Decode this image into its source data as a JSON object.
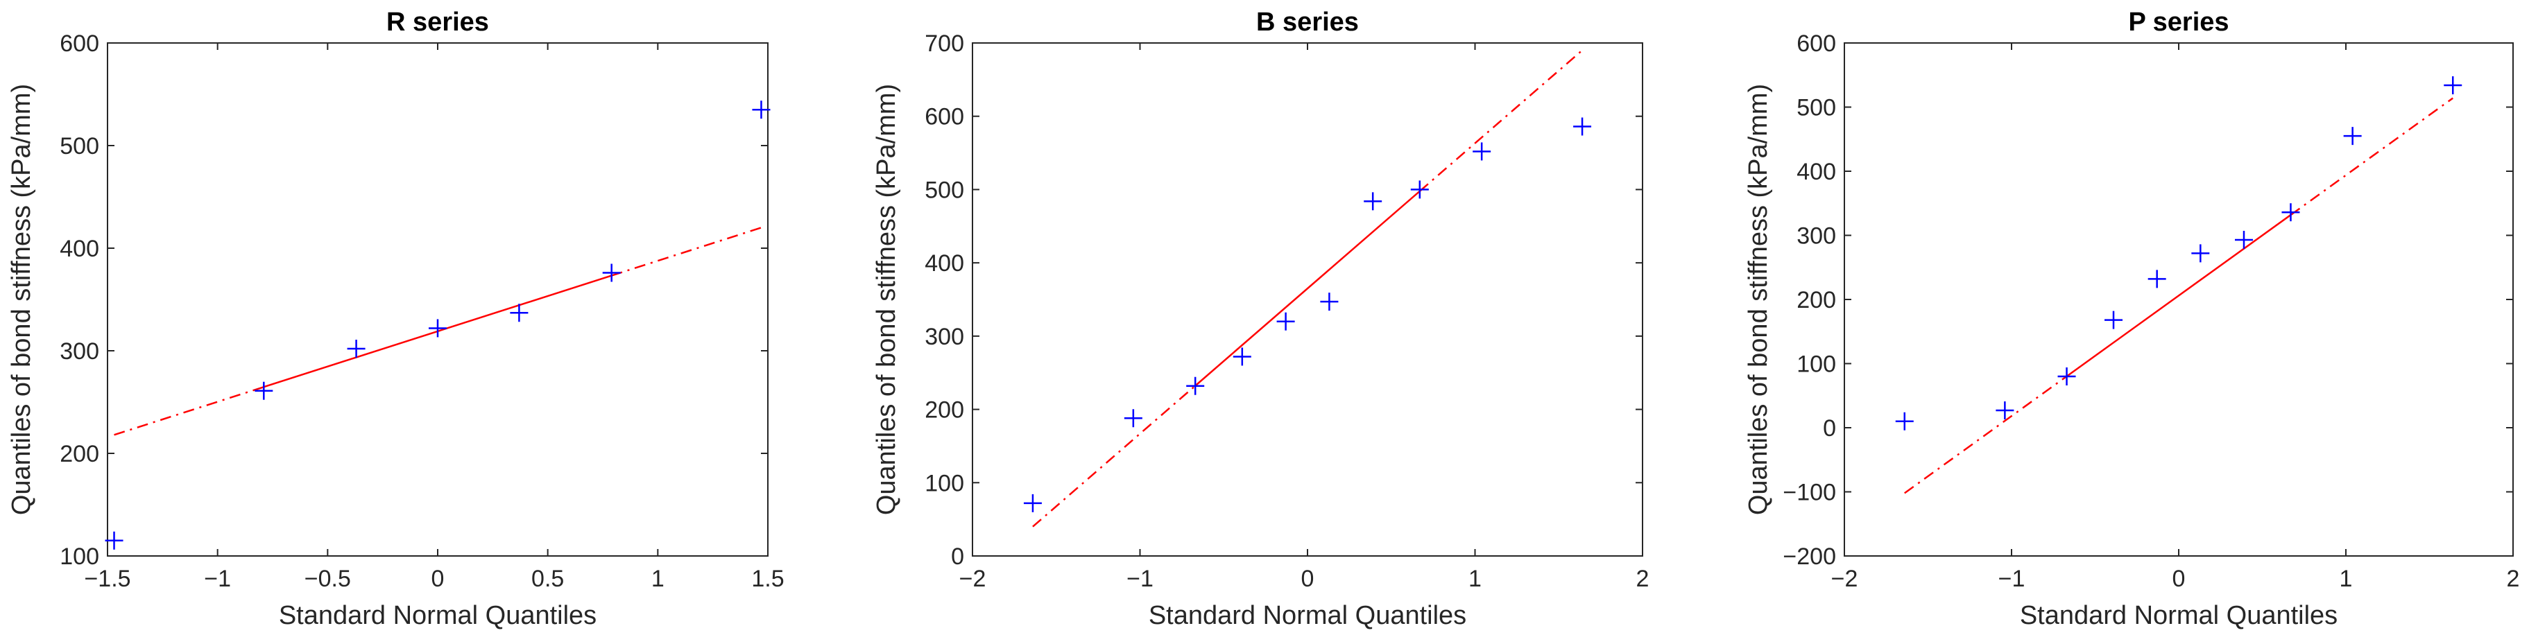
{
  "chart_data": [
    {
      "type": "scatter",
      "title": "R series",
      "xlabel": "Standard Normal Quantiles",
      "ylabel": "Quantiles of bond stiffness (kPa/mm)",
      "xlim": [
        -1.5,
        1.5
      ],
      "ylim": [
        100,
        600
      ],
      "xticks": [
        -1.5,
        -1,
        -0.5,
        0,
        0.5,
        1,
        1.5
      ],
      "xtick_labels": [
        "−1.5",
        "−1",
        "−0.5",
        "0",
        "0.5",
        "1",
        "1.5"
      ],
      "yticks": [
        100,
        200,
        300,
        400,
        500,
        600
      ],
      "ytick_labels": [
        "100",
        "200",
        "300",
        "400",
        "500",
        "600"
      ],
      "points": {
        "x": [
          -1.47,
          -0.79,
          -0.37,
          0.0,
          0.37,
          0.79,
          1.47
        ],
        "y": [
          115,
          261,
          302,
          322,
          337,
          376,
          535
        ]
      },
      "fit_line": {
        "x1": -1.47,
        "y1": 218,
        "x2": 1.47,
        "y2": 420,
        "solid_from": -0.79,
        "solid_to": 0.79
      },
      "marker_color": "#0000ff",
      "line_color": "#ff0000"
    },
    {
      "type": "scatter",
      "title": "B series",
      "xlabel": "Standard Normal Quantiles",
      "ylabel": "Quantiles of bond stiffness (kPa/mm)",
      "xlim": [
        -2,
        2
      ],
      "ylim": [
        0,
        700
      ],
      "xticks": [
        -2,
        -1,
        0,
        1,
        2
      ],
      "xtick_labels": [
        "−2",
        "−1",
        "0",
        "1",
        "2"
      ],
      "yticks": [
        0,
        100,
        200,
        300,
        400,
        500,
        600,
        700
      ],
      "ytick_labels": [
        "0",
        "100",
        "200",
        "300",
        "400",
        "500",
        "600",
        "700"
      ],
      "points": {
        "x": [
          -1.64,
          -1.04,
          -0.67,
          -0.39,
          -0.13,
          0.13,
          0.39,
          0.67,
          1.04,
          1.64
        ],
        "y": [
          72,
          188,
          232,
          272,
          320,
          347,
          484,
          500,
          552,
          586
        ]
      },
      "fit_line": {
        "x1": -1.64,
        "y1": 40,
        "x2": 1.64,
        "y2": 690,
        "solid_from": -0.67,
        "solid_to": 0.67
      },
      "marker_color": "#0000ff",
      "line_color": "#ff0000"
    },
    {
      "type": "scatter",
      "title": "P series",
      "xlabel": "Standard Normal Quantiles",
      "ylabel": "Quantiles of bond stiffness (kPa/mm)",
      "xlim": [
        -2,
        2
      ],
      "ylim": [
        -200,
        600
      ],
      "xticks": [
        -2,
        -1,
        0,
        1,
        2
      ],
      "xtick_labels": [
        "−2",
        "−1",
        "0",
        "1",
        "2"
      ],
      "yticks": [
        -200,
        -100,
        0,
        100,
        200,
        300,
        400,
        500,
        600
      ],
      "ytick_labels": [
        "−200",
        "−100",
        "0",
        "100",
        "200",
        "300",
        "400",
        "500",
        "600"
      ],
      "points": {
        "x": [
          -1.64,
          -1.04,
          -0.67,
          -0.39,
          -0.13,
          0.13,
          0.39,
          0.67,
          1.04,
          1.64
        ],
        "y": [
          10,
          27,
          80,
          168,
          232,
          272,
          293,
          336,
          455,
          534
        ]
      },
      "fit_line": {
        "x1": -1.64,
        "y1": -102,
        "x2": 1.64,
        "y2": 514,
        "solid_from": -0.67,
        "solid_to": 0.67
      },
      "marker_color": "#0000ff",
      "line_color": "#ff0000"
    }
  ]
}
